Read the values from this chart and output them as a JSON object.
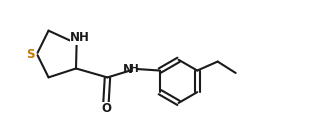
{
  "bg_color": "#ffffff",
  "line_color": "#1a1a1a",
  "atom_color": "#1a1a1a",
  "line_width": 1.5,
  "font_size_atom": 8.5,
  "fig_width": 3.16,
  "fig_height": 1.35,
  "dpi": 100,
  "xlim": [
    0,
    10.5
  ],
  "ylim": [
    0,
    4.2
  ]
}
